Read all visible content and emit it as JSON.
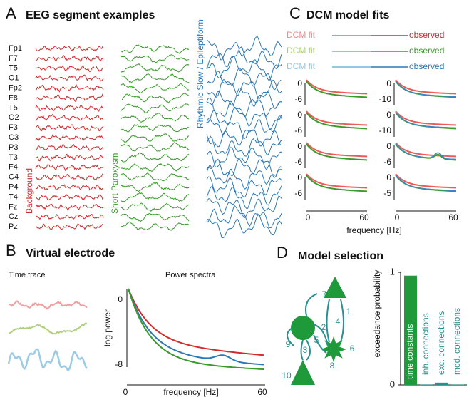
{
  "panel_a": {
    "label": "A",
    "title": "EEG segment examples",
    "channels": [
      "Fp1",
      "F7",
      "T5",
      "O1",
      "Fp2",
      "F8",
      "T5",
      "O2",
      "F3",
      "C3",
      "P3",
      "T3",
      "F4",
      "C4",
      "P4",
      "T4",
      "Fz",
      "Cz",
      "Pz"
    ],
    "groups": [
      "Background",
      "Short Paroxysm",
      "Rhythmic Slow / Epileptiform"
    ]
  },
  "panel_b": {
    "label": "B",
    "title": "Virtual electrode",
    "time_trace": "Time trace",
    "power_spectra": "Power spectra",
    "y_label": "log power",
    "x_label": "frequency [Hz]",
    "yticks": [
      0,
      -8
    ],
    "xticks": [
      0,
      60
    ]
  },
  "panel_c": {
    "label": "C",
    "title": "DCM model fits",
    "legend": [
      {
        "fit": "DCM fit",
        "observed": "observed"
      },
      {
        "fit": "DCM fit",
        "observed": "observed"
      },
      {
        "fit": "DCM fit",
        "observed": "observed"
      }
    ],
    "left_yticks": [
      [
        0,
        -6
      ],
      [
        0,
        -6
      ],
      [
        0,
        -6
      ],
      [
        0,
        -6
      ]
    ],
    "right_yticks": [
      [
        0,
        -10
      ],
      [
        0,
        -10
      ],
      [
        0,
        -6
      ],
      [
        0,
        -5
      ]
    ],
    "xticks": [
      0,
      60
    ],
    "x_label": "frequency [Hz]"
  },
  "panel_d": {
    "label": "D",
    "title": "Model selection",
    "node_labels": [
      1,
      2,
      3,
      4,
      5,
      6,
      7,
      8,
      9,
      10
    ],
    "chart": {
      "y_label": "exceedance probability",
      "ylim": [
        0,
        1
      ],
      "yticks": [
        0,
        1
      ],
      "categories": [
        "time constants",
        "inh. connections",
        "exc. connections",
        "mod. connections"
      ],
      "values": [
        0.97,
        0.004,
        0.02,
        0.004
      ],
      "colors": [
        "#1e9a3a",
        "#2a8f8f",
        "#2a8f8f",
        "#2a8f8f"
      ]
    }
  }
}
